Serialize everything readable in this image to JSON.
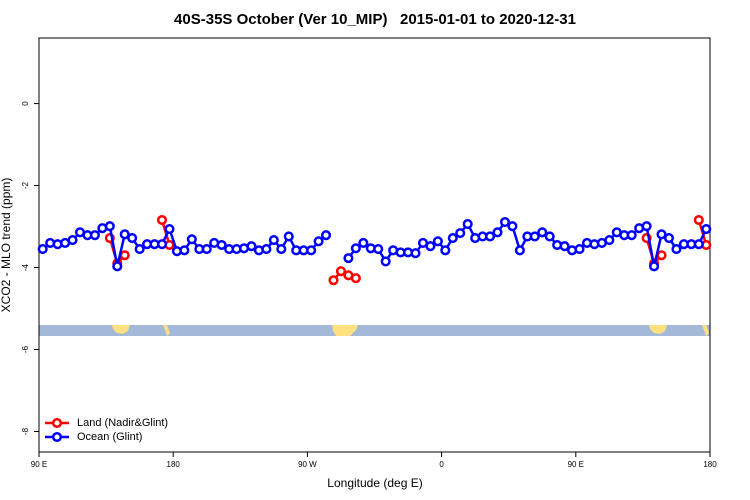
{
  "chart_data": {
    "type": "line",
    "title": "40S-35S October (Ver 10_MIP)   2015-01-01 to 2020-12-31",
    "xlabel": "Longitude (deg E)",
    "ylabel": "XCO2 - MLO trend (ppm)",
    "x": [
      92.5,
      97.5,
      102.5,
      107.5,
      112.5,
      117.5,
      122.5,
      127.5,
      132.5,
      137.5,
      142.5,
      147.5,
      152.5,
      157.5,
      162.5,
      167.5,
      172.5,
      177.5,
      182.5,
      187.5,
      192.5,
      197.5,
      202.5,
      207.5,
      212.5,
      217.5,
      222.5,
      227.5,
      232.5,
      237.5,
      242.5,
      247.5,
      252.5,
      257.5,
      262.5,
      267.5,
      272.5,
      277.5,
      282.5,
      287.5,
      292.5,
      297.5,
      302.5,
      307.5,
      312.5,
      317.5,
      322.5,
      327.5,
      332.5,
      337.5,
      342.5,
      347.5,
      352.5,
      357.5,
      362.5,
      367.5,
      372.5,
      377.5,
      382.5,
      387.5,
      392.5,
      397.5,
      402.5,
      407.5,
      412.5,
      417.5,
      422.5,
      427.5,
      432.5,
      437.5,
      442.5,
      447.5,
      452.5,
      457.5,
      462.5,
      467.5,
      472.5,
      477.5,
      482.5,
      487.5,
      492.5,
      497.5,
      502.5,
      507.5,
      512.5,
      517.5,
      522.5,
      527.5,
      532.5,
      537.5
    ],
    "series": [
      {
        "name": "Land (Nadir&Glint)",
        "color": "#ff0000",
        "values": [
          null,
          null,
          null,
          null,
          null,
          null,
          null,
          null,
          null,
          -3.28,
          -3.9,
          -3.7,
          null,
          null,
          null,
          null,
          -2.84,
          -3.45,
          null,
          null,
          null,
          null,
          null,
          null,
          null,
          null,
          null,
          null,
          null,
          null,
          null,
          null,
          null,
          null,
          null,
          null,
          null,
          null,
          null,
          -4.31,
          -4.09,
          -4.19,
          -4.26,
          null,
          null,
          null,
          null,
          null,
          null,
          null,
          null,
          null,
          null,
          null,
          null,
          null,
          null,
          null,
          null,
          null,
          null,
          null,
          null,
          null,
          null,
          null,
          null,
          null,
          null,
          null,
          null,
          null,
          null,
          null,
          null,
          null,
          null,
          null,
          null,
          null,
          null,
          -3.28,
          -3.9,
          -3.7,
          null,
          null,
          null,
          null,
          -2.84,
          -3.45
        ]
      },
      {
        "name": "Ocean (Glint)",
        "color": "#0000ff",
        "values": [
          -3.55,
          -3.4,
          -3.43,
          -3.4,
          -3.33,
          -3.14,
          -3.21,
          -3.21,
          -3.04,
          -2.99,
          -3.97,
          -3.19,
          -3.28,
          -3.55,
          -3.43,
          -3.43,
          -3.43,
          -3.06,
          -3.6,
          -3.58,
          -3.31,
          -3.55,
          -3.55,
          -3.4,
          -3.45,
          -3.55,
          -3.55,
          -3.53,
          -3.48,
          -3.58,
          -3.55,
          -3.33,
          -3.55,
          -3.24,
          -3.58,
          -3.58,
          -3.58,
          -3.36,
          -3.21,
          null,
          null,
          -3.77,
          -3.53,
          -3.4,
          -3.53,
          -3.55,
          -3.85,
          -3.58,
          -3.63,
          -3.63,
          -3.65,
          -3.4,
          -3.48,
          -3.36,
          -3.58,
          -3.28,
          -3.16,
          -2.94,
          -3.28,
          -3.24,
          -3.24,
          -3.14,
          -2.89,
          -2.99,
          -3.58,
          -3.24,
          -3.24,
          -3.14,
          -3.24,
          -3.45,
          -3.48,
          -3.58,
          -3.55,
          -3.4,
          -3.43,
          -3.4,
          -3.33,
          -3.14,
          -3.21,
          -3.21,
          -3.04,
          -2.99,
          -3.97,
          -3.19,
          -3.28,
          -3.55,
          -3.43,
          -3.43,
          -3.43,
          -3.06
        ]
      }
    ],
    "xlim": [
      90,
      540
    ],
    "xticks": [
      {
        "value": 90,
        "label": "90 E"
      },
      {
        "value": 180,
        "label": "180"
      },
      {
        "value": 270,
        "label": "90 W"
      },
      {
        "value": 360,
        "label": "0"
      },
      {
        "value": 450,
        "label": "90 E"
      },
      {
        "value": 540,
        "label": "180"
      }
    ],
    "ylim": [
      -8.5,
      1.6
    ],
    "yticks": [
      0,
      -2,
      -4,
      -6,
      -8
    ],
    "legend": "bottom-left"
  }
}
